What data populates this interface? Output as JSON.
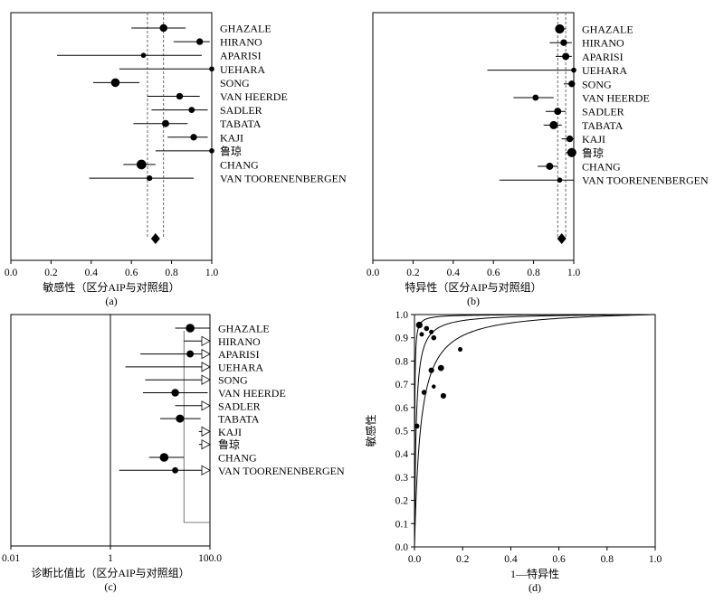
{
  "chart_data": [
    {
      "id": "a",
      "type": "forest",
      "caption": "(a)",
      "xlabel": "敏感性（区分AIP与对照组）",
      "xlim": [
        0,
        1
      ],
      "xticks": [
        "0.0",
        "0.2",
        "0.4",
        "0.6",
        "0.8",
        "1.0"
      ],
      "pooled": {
        "estimate": 0.72,
        "ci": [
          0.68,
          0.76
        ]
      },
      "studies": [
        {
          "name": "GHAZALE",
          "estimate": 0.76,
          "ci": [
            0.6,
            0.87
          ],
          "weight": 1.3
        },
        {
          "name": "HIRANO",
          "estimate": 0.94,
          "ci": [
            0.81,
            0.99
          ],
          "weight": 1.1
        },
        {
          "name": "APARISI",
          "estimate": 0.66,
          "ci": [
            0.23,
            0.95
          ],
          "weight": 0.8
        },
        {
          "name": "UEHARA",
          "estimate": 1.0,
          "ci": [
            0.54,
            1.0
          ],
          "weight": 0.8
        },
        {
          "name": "SONG",
          "estimate": 0.52,
          "ci": [
            0.41,
            0.64
          ],
          "weight": 1.5
        },
        {
          "name": "VAN HEERDE",
          "estimate": 0.84,
          "ci": [
            0.68,
            0.94
          ],
          "weight": 1.1
        },
        {
          "name": "SADLER",
          "estimate": 0.9,
          "ci": [
            0.7,
            0.98
          ],
          "weight": 1.0
        },
        {
          "name": "TABATA",
          "estimate": 0.77,
          "ci": [
            0.61,
            0.88
          ],
          "weight": 1.2
        },
        {
          "name": "KAJI",
          "estimate": 0.91,
          "ci": [
            0.78,
            0.98
          ],
          "weight": 1.1
        },
        {
          "name": "鲁琼",
          "estimate": 1.0,
          "ci": [
            0.72,
            1.0
          ],
          "weight": 0.8
        },
        {
          "name": "CHANG",
          "estimate": 0.65,
          "ci": [
            0.56,
            0.72
          ],
          "weight": 1.7
        },
        {
          "name": "VAN TOORENENBERGEN",
          "estimate": 0.69,
          "ci": [
            0.39,
            0.91
          ],
          "weight": 0.9
        }
      ]
    },
    {
      "id": "b",
      "type": "forest",
      "caption": "(b)",
      "xlabel": "特异性（区分AIP与对照组）",
      "xlim": [
        0,
        1
      ],
      "xticks": [
        "0.0",
        "0.2",
        "0.4",
        "0.6",
        "0.8",
        "1.0"
      ],
      "pooled": {
        "estimate": 0.94,
        "ci": [
          0.92,
          0.96
        ]
      },
      "studies": [
        {
          "name": "GHAZALE",
          "estimate": 0.93,
          "ci": [
            0.91,
            0.96
          ],
          "weight": 1.6
        },
        {
          "name": "HIRANO",
          "estimate": 0.95,
          "ci": [
            0.88,
            0.99
          ],
          "weight": 1.1
        },
        {
          "name": "APARISI",
          "estimate": 0.96,
          "ci": [
            0.91,
            0.99
          ],
          "weight": 1.2
        },
        {
          "name": "UEHARA",
          "estimate": 1.0,
          "ci": [
            0.57,
            1.0
          ],
          "weight": 0.8
        },
        {
          "name": "SONG",
          "estimate": 0.99,
          "ci": [
            0.95,
            1.0
          ],
          "weight": 1.1
        },
        {
          "name": "VAN HEERDE",
          "estimate": 0.81,
          "ci": [
            0.7,
            0.9
          ],
          "weight": 1.0
        },
        {
          "name": "SADLER",
          "estimate": 0.92,
          "ci": [
            0.86,
            0.96
          ],
          "weight": 1.2
        },
        {
          "name": "TABATA",
          "estimate": 0.9,
          "ci": [
            0.85,
            0.94
          ],
          "weight": 1.4
        },
        {
          "name": "KAJI",
          "estimate": 0.98,
          "ci": [
            0.94,
            1.0
          ],
          "weight": 1.1
        },
        {
          "name": "鲁琼",
          "estimate": 0.99,
          "ci": [
            0.96,
            1.0
          ],
          "weight": 1.6
        },
        {
          "name": "CHANG",
          "estimate": 0.88,
          "ci": [
            0.82,
            0.92
          ],
          "weight": 1.2
        },
        {
          "name": "VAN TOORENENBERGEN",
          "estimate": 0.93,
          "ci": [
            0.63,
            1.0
          ],
          "weight": 0.8
        }
      ]
    },
    {
      "id": "c",
      "type": "forest",
      "scale": "log",
      "caption": "(c)",
      "xlabel": "诊断比值比（区分AIP与对照组）",
      "xlim": [
        0.01,
        100
      ],
      "reference_line": 1,
      "xticks": [
        "0.01",
        "1",
        "100.0"
      ],
      "pooled": {
        "estimate": 30,
        "ci": [
          30,
          100
        ]
      },
      "studies": [
        {
          "name": "GHAZALE",
          "estimate": 40,
          "ci": [
            20,
            100
          ],
          "weight": 1.5,
          "arrow": false
        },
        {
          "name": "HIRANO",
          "estimate": null,
          "ci": [
            30,
            100
          ],
          "weight": 0,
          "arrow": true
        },
        {
          "name": "APARISI",
          "estimate": 40,
          "ci": [
            4,
            100
          ],
          "weight": 1.2,
          "arrow": true
        },
        {
          "name": "UEHARA",
          "estimate": null,
          "ci": [
            2,
            100
          ],
          "weight": 0,
          "arrow": true
        },
        {
          "name": "SONG",
          "estimate": null,
          "ci": [
            5,
            100
          ],
          "weight": 0,
          "arrow": true
        },
        {
          "name": "VAN HEERDE",
          "estimate": 20,
          "ci": [
            4.5,
            90
          ],
          "weight": 1.3,
          "arrow": false
        },
        {
          "name": "SADLER",
          "estimate": null,
          "ci": [
            20,
            100
          ],
          "weight": 0,
          "arrow": true
        },
        {
          "name": "TABATA",
          "estimate": 25,
          "ci": [
            10,
            65
          ],
          "weight": 1.4,
          "arrow": false
        },
        {
          "name": "KAJI",
          "estimate": null,
          "ci": [
            60,
            100
          ],
          "weight": 0,
          "arrow": true
        },
        {
          "name": "鲁琼",
          "estimate": null,
          "ci": [
            60,
            100
          ],
          "weight": 0,
          "arrow": true
        },
        {
          "name": "CHANG",
          "estimate": 12,
          "ci": [
            6,
            30
          ],
          "weight": 1.5,
          "arrow": false
        },
        {
          "name": "VAN TOORENENBERGEN",
          "estimate": 20,
          "ci": [
            1.5,
            100
          ],
          "weight": 1.0,
          "arrow": true
        }
      ]
    },
    {
      "id": "d",
      "type": "scatter",
      "caption": "(d)",
      "xlabel": "1—特异性",
      "ylabel": "敏感性",
      "xlim": [
        0,
        1
      ],
      "ylim": [
        0,
        1
      ],
      "xticks": [
        "0.0",
        "0.2",
        "0.4",
        "0.6",
        "0.8",
        "1.0"
      ],
      "yticks": [
        "0.0",
        "0.1",
        "0.2",
        "0.3",
        "0.4",
        "0.5",
        "0.6",
        "0.7",
        "0.8",
        "0.9",
        "1.0"
      ],
      "points": [
        {
          "x": 0.02,
          "y": 0.955,
          "size": 1.3
        },
        {
          "x": 0.05,
          "y": 0.94,
          "size": 1.0
        },
        {
          "x": 0.03,
          "y": 0.915,
          "size": 0.9
        },
        {
          "x": 0.07,
          "y": 0.925,
          "size": 0.9
        },
        {
          "x": 0.08,
          "y": 0.9,
          "size": 1.0
        },
        {
          "x": 0.19,
          "y": 0.85,
          "size": 0.9
        },
        {
          "x": 0.11,
          "y": 0.77,
          "size": 1.2
        },
        {
          "x": 0.07,
          "y": 0.76,
          "size": 1.1
        },
        {
          "x": 0.08,
          "y": 0.69,
          "size": 0.8
        },
        {
          "x": 0.04,
          "y": 0.665,
          "size": 1.0
        },
        {
          "x": 0.12,
          "y": 0.65,
          "size": 1.1
        },
        {
          "x": 0.01,
          "y": 0.52,
          "size": 1.0
        }
      ],
      "curves": [
        {
          "dor": 1000
        },
        {
          "dor": 150
        },
        {
          "dor": 40
        }
      ]
    }
  ]
}
